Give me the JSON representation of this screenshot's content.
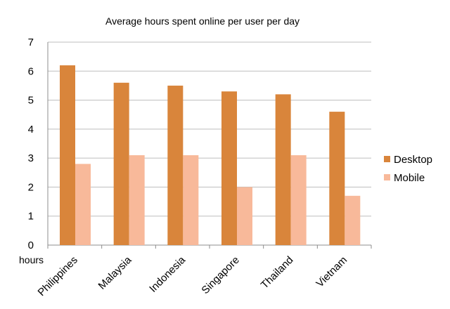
{
  "chart_data": {
    "type": "bar",
    "title": "Average hours spent online per user per day",
    "xlabel": "",
    "ylabel": "",
    "y_unit_label": "hours",
    "categories": [
      "Philippines",
      "Malaysia",
      "Indonesia",
      "Singapore",
      "Thailand",
      "Vietnam"
    ],
    "series": [
      {
        "name": "Desktop",
        "values": [
          6.2,
          5.6,
          5.5,
          5.3,
          5.2,
          4.6
        ],
        "color": "#d9853b"
      },
      {
        "name": "Mobile",
        "values": [
          2.8,
          3.1,
          3.1,
          2.0,
          3.1,
          1.7
        ],
        "color": "#f8b99a"
      }
    ],
    "ylim": [
      0,
      7
    ],
    "yticks": [
      "0",
      "1",
      "2",
      "3",
      "4",
      "5",
      "6",
      "7"
    ],
    "grid": true,
    "legend_position": "right"
  }
}
